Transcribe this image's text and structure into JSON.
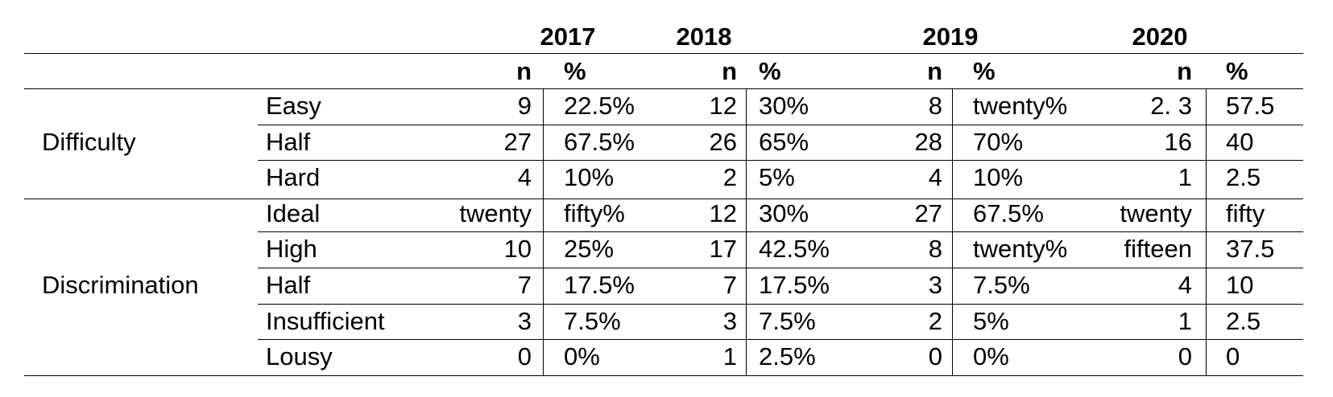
{
  "table": {
    "years": [
      "2017",
      "2018",
      "2019",
      "2020"
    ],
    "subheaders": [
      "n",
      "%"
    ],
    "groups": [
      {
        "label": "Difficulty",
        "rows": [
          {
            "label": "Easy",
            "values": [
              "9",
              "22.5%",
              "12",
              "30%",
              "8",
              "twenty%",
              "2. 3",
              "57.5"
            ]
          },
          {
            "label": "Half",
            "values": [
              "27",
              "67.5%",
              "26",
              "65%",
              "28",
              "70%",
              "16",
              "40"
            ]
          },
          {
            "label": "Hard",
            "values": [
              "4",
              "10%",
              "2",
              "5%",
              "4",
              "10%",
              "1",
              "2.5"
            ]
          }
        ]
      },
      {
        "label": "Discrimination",
        "rows": [
          {
            "label": "Ideal",
            "values": [
              "twenty",
              "fifty%",
              "12",
              "30%",
              "27",
              "67.5%",
              "twenty",
              "fifty"
            ]
          },
          {
            "label": "High",
            "values": [
              "10",
              "25%",
              "17",
              "42.5%",
              "8",
              "twenty%",
              "fifteen",
              "37.5"
            ]
          },
          {
            "label": "Half",
            "values": [
              "7",
              "17.5%",
              "7",
              "17.5%",
              "3",
              "7.5%",
              "4",
              "10"
            ]
          },
          {
            "label": "Insufficient",
            "values": [
              "3",
              "7.5%",
              "3",
              "7.5%",
              "2",
              "5%",
              "1",
              "2.5"
            ]
          },
          {
            "label": "Lousy",
            "values": [
              "0",
              "0%",
              "1",
              "2.5%",
              "0",
              "0%",
              "0",
              "0"
            ]
          }
        ]
      }
    ]
  }
}
